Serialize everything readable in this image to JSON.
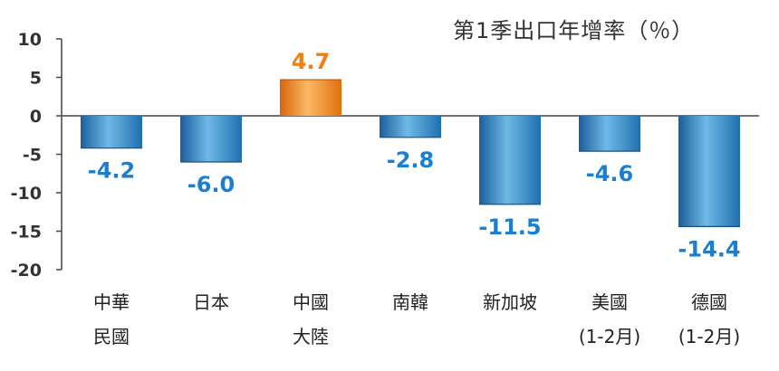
{
  "chart_data": {
    "type": "bar",
    "title": "第1季出口年增率（％）",
    "categories": [
      [
        "中華",
        "民國"
      ],
      [
        "日本"
      ],
      [
        "中國",
        "大陸"
      ],
      [
        "南韓"
      ],
      [
        "新加坡"
      ],
      [
        "美國",
        "(1-2月)"
      ],
      [
        "德國",
        "(1-2月)"
      ]
    ],
    "values": [
      -4.2,
      -6.0,
      4.7,
      -2.8,
      -11.5,
      -4.6,
      -14.4
    ],
    "value_labels": [
      "-4.2",
      "-6.0",
      "4.7",
      "-2.8",
      "-11.5",
      "-4.6",
      "-14.4"
    ],
    "highlight_index": 2,
    "ylim": [
      -20,
      10
    ],
    "yticks": [
      10,
      5,
      0,
      -5,
      -10,
      -15,
      -20
    ],
    "xlabel": "",
    "ylabel": "",
    "grid": false,
    "colors": {
      "negative_bar": "#2f86c4",
      "positive_bar": "#f07f13",
      "negative_label": "#1a7fd0",
      "positive_label": "#f07f13",
      "axis": "#444444"
    }
  }
}
